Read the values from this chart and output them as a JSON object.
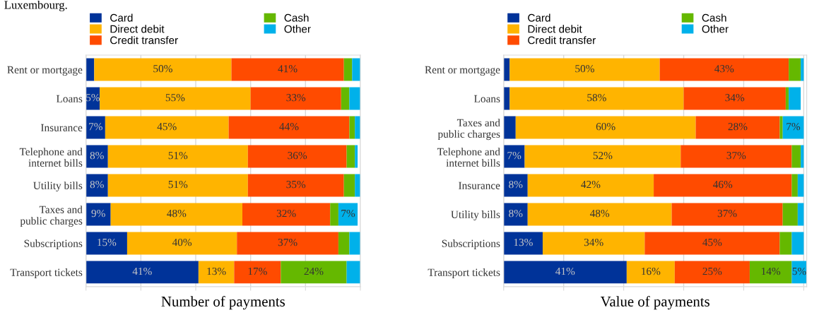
{
  "chart_data": [
    {
      "type": "bar",
      "orientation": "horizontal",
      "stacked": true,
      "xlabel": "Number of payments",
      "annotations": [
        "Luxembourg."
      ],
      "categories": [
        "Rent or mortgage",
        "Loans",
        "Insurance",
        "Telephone and\ninternet bills",
        "Utility bills",
        "Taxes and\npublic charges",
        "Subscriptions",
        "Transport tickets"
      ],
      "series": [
        {
          "name": "Card",
          "color": "#003399",
          "values": [
            3,
            5,
            7,
            8,
            8,
            9,
            15,
            41
          ],
          "value_labels": [
            null,
            "5%",
            "7%",
            "8%",
            "8%",
            "9%",
            "15%",
            "41%"
          ]
        },
        {
          "name": "Direct debit",
          "color": "#ffb400",
          "values": [
            50,
            55,
            45,
            51,
            51,
            48,
            40,
            13
          ],
          "value_labels": [
            "50%",
            "55%",
            "45%",
            "51%",
            "51%",
            "48%",
            "40%",
            "13%"
          ]
        },
        {
          "name": "Credit transfer",
          "color": "#ff4b00",
          "values": [
            41,
            33,
            44,
            36,
            35,
            32,
            37,
            17
          ],
          "value_labels": [
            "41%",
            "33%",
            "44%",
            "36%",
            "35%",
            "32%",
            "37%",
            "17%"
          ]
        },
        {
          "name": "Cash",
          "color": "#65b800",
          "values": [
            3,
            3,
            2,
            3,
            4,
            3,
            4,
            24
          ],
          "value_labels": [
            null,
            null,
            null,
            null,
            null,
            null,
            null,
            "24%"
          ]
        },
        {
          "name": "Other",
          "color": "#00b1ea",
          "values": [
            3,
            4,
            2,
            1,
            2,
            7,
            4,
            5
          ],
          "value_labels": [
            null,
            null,
            null,
            null,
            null,
            "7%",
            null,
            null
          ]
        }
      ],
      "xlim": [
        0,
        100
      ],
      "xticks": [
        {
          "value": 0,
          "label": null
        },
        {
          "value": 20,
          "label": null
        },
        {
          "value": 40,
          "label": null
        },
        {
          "value": 60,
          "label": null
        },
        {
          "value": 80,
          "label": null
        },
        {
          "value": 100,
          "label": null
        }
      ],
      "grid": "x",
      "legend": "top"
    },
    {
      "type": "bar",
      "orientation": "horizontal",
      "stacked": true,
      "xlabel": "Value of payments",
      "categories": [
        "Rent or mortgage",
        "Loans",
        "Taxes and\npublic charges",
        "Telephone and\ninternet bills",
        "Insurance",
        "Utility bills",
        "Subscriptions",
        "Transport tickets"
      ],
      "series": [
        {
          "name": "Card",
          "color": "#003399",
          "values": [
            2,
            2,
            4,
            7,
            8,
            8,
            13,
            41
          ],
          "value_labels": [
            null,
            null,
            null,
            "7%",
            "8%",
            "8%",
            "13%",
            "41%"
          ]
        },
        {
          "name": "Direct debit",
          "color": "#ffb400",
          "values": [
            50,
            58,
            60,
            52,
            42,
            48,
            34,
            16
          ],
          "value_labels": [
            "50%",
            "58%",
            "60%",
            "52%",
            "42%",
            "48%",
            "34%",
            "16%"
          ]
        },
        {
          "name": "Credit transfer",
          "color": "#ff4b00",
          "values": [
            43,
            34,
            28,
            37,
            46,
            37,
            45,
            25
          ],
          "value_labels": [
            "43%",
            "34%",
            "28%",
            "37%",
            "46%",
            "37%",
            "45%",
            "25%"
          ]
        },
        {
          "name": "Cash",
          "color": "#65b800",
          "values": [
            4,
            1,
            1,
            3,
            2,
            5,
            4,
            14
          ],
          "value_labels": [
            null,
            null,
            null,
            null,
            null,
            null,
            null,
            "14%"
          ]
        },
        {
          "name": "Other",
          "color": "#00b1ea",
          "values": [
            1,
            4,
            7,
            1,
            2,
            2,
            4,
            5
          ],
          "value_labels": [
            null,
            null,
            "7%",
            null,
            null,
            null,
            null,
            "5%"
          ]
        }
      ],
      "xlim": [
        0,
        101
      ],
      "xticks": [
        {
          "value": 0,
          "label": null
        },
        {
          "value": 20,
          "label": null
        },
        {
          "value": 40,
          "label": null
        },
        {
          "value": 60,
          "label": null
        },
        {
          "value": 80,
          "label": null
        },
        {
          "value": 100,
          "label": null
        }
      ],
      "grid": "x",
      "legend": "top"
    }
  ]
}
